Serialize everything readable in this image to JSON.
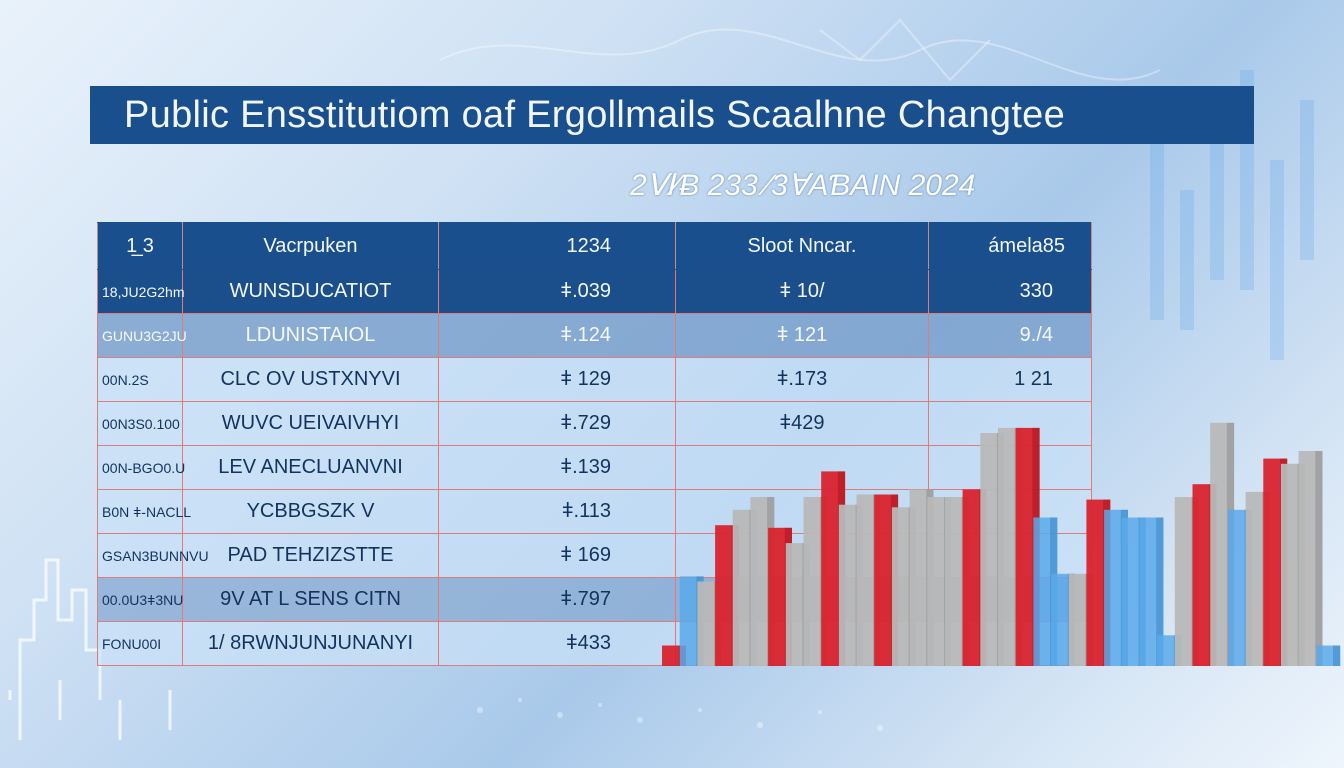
{
  "header": {
    "title": "Public Ensstitutiom oaf Ergollmails Scaalhne Changtee",
    "subtitle": "2Ⅵ⁄Ƀ 233 ⁄3ⱯAƁAIN 2024"
  },
  "table": {
    "headers": [
      "1̲ 3",
      "Vacrpuken",
      "1234",
      "Sloot Nncar.",
      "ámela85"
    ],
    "rows": [
      {
        "id": "18,JU2G2hm",
        "name": "WUNSDUCATIOT",
        "v1": "ǂ.039",
        "v2": "ǂ 10/",
        "v3": "330"
      },
      {
        "id": "GUNU3G2JU",
        "name": "LDUNISTAIOL",
        "v1": "ǂ.124",
        "v2": "ǂ 121",
        "v3": "9./4"
      },
      {
        "id": "00N.2S",
        "name": "CLC OV   USTXNYVI",
        "v1": "ǂ 129",
        "v2": "ǂ.173",
        "v3": "1 21"
      },
      {
        "id": "00N3S0.100",
        "name": "WUVC UEIVAIVHYI",
        "v1": "ǂ.729",
        "v2": "ǂ429",
        "v3": ""
      },
      {
        "id": "00N-BGO0.U",
        "name": "LEV  ANECLUANVNI",
        "v1": "ǂ.139",
        "v2": "",
        "v3": ""
      },
      {
        "id": "B0N ǂ-NACLL",
        "name": "YCBBGSZK V",
        "v1": "ǂ.113",
        "v2": "",
        "v3": ""
      },
      {
        "id": "GSAN3BUNNVU",
        "name": "PAD  TEHZIZSTTE",
        "v1": "ǂ 169",
        "v2": "",
        "v3": ""
      },
      {
        "id": "00.0U3ǂ3NU",
        "name": "9V  AT L SENS CITN",
        "v1": "ǂ.797",
        "v2": "",
        "v3": ""
      },
      {
        "id": "FONU00I",
        "name": "1/ 8RWNJUNJUNANYI",
        "v1": "ǂ433",
        "v2": "",
        "v3": ""
      }
    ]
  },
  "colors": {
    "title_bar": "#1a4f8e",
    "bar_red": "#d9232e",
    "bar_gray": "#b8b8b8",
    "bar_blue": "#5aa9ea"
  },
  "bar_chart": {
    "bars": [
      {
        "c": "red",
        "v": 0.08
      },
      {
        "c": "blue",
        "v": 0.35
      },
      {
        "c": "gray",
        "v": 0.33
      },
      {
        "c": "red",
        "v": 0.55
      },
      {
        "c": "gray",
        "v": 0.61
      },
      {
        "c": "gray",
        "v": 0.66
      },
      {
        "c": "red",
        "v": 0.54
      },
      {
        "c": "gray",
        "v": 0.48
      },
      {
        "c": "gray",
        "v": 0.66
      },
      {
        "c": "red",
        "v": 0.76
      },
      {
        "c": "gray",
        "v": 0.63
      },
      {
        "c": "gray",
        "v": 0.67
      },
      {
        "c": "red",
        "v": 0.67
      },
      {
        "c": "gray",
        "v": 0.62
      },
      {
        "c": "gray",
        "v": 0.69
      },
      {
        "c": "gray",
        "v": 0.66
      },
      {
        "c": "gray",
        "v": 0.66
      },
      {
        "c": "red",
        "v": 0.69
      },
      {
        "c": "gray",
        "v": 0.91
      },
      {
        "c": "gray",
        "v": 0.93
      },
      {
        "c": "red",
        "v": 0.93
      },
      {
        "c": "blue",
        "v": 0.58
      },
      {
        "c": "blue",
        "v": 0.36
      },
      {
        "c": "gray",
        "v": 0.36
      },
      {
        "c": "red",
        "v": 0.65
      },
      {
        "c": "blue",
        "v": 0.61
      },
      {
        "c": "blue",
        "v": 0.58
      },
      {
        "c": "blue",
        "v": 0.58
      },
      {
        "c": "blue",
        "v": 0.12
      },
      {
        "c": "gray",
        "v": 0.66
      },
      {
        "c": "red",
        "v": 0.71
      },
      {
        "c": "gray",
        "v": 0.95
      },
      {
        "c": "blue",
        "v": 0.61
      },
      {
        "c": "gray",
        "v": 0.68
      },
      {
        "c": "red",
        "v": 0.81
      },
      {
        "c": "gray",
        "v": 0.79
      },
      {
        "c": "gray",
        "v": 0.84
      },
      {
        "c": "blue",
        "v": 0.08
      }
    ]
  }
}
